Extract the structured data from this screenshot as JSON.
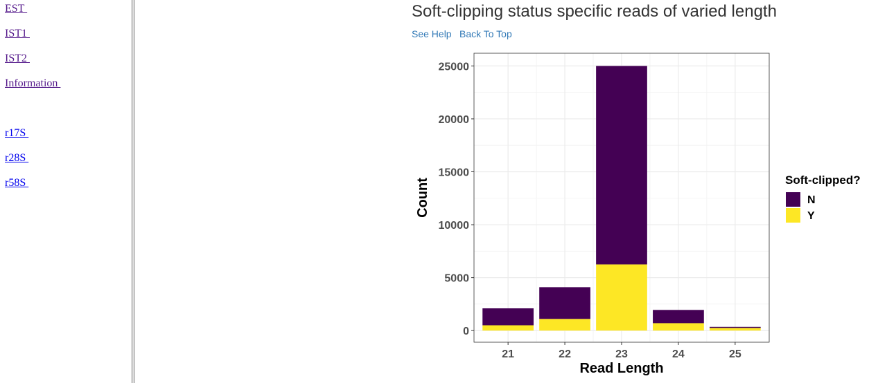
{
  "sidebar": {
    "links": [
      {
        "label": "EST ",
        "state": "visited"
      },
      {
        "label": "IST1 ",
        "state": "visited"
      },
      {
        "label": "IST2 ",
        "state": "visited"
      },
      {
        "label": "Information ",
        "state": "visited"
      },
      {
        "label": "r17S ",
        "state": "unvisited"
      },
      {
        "label": "r28S ",
        "state": "unvisited"
      },
      {
        "label": "r58S ",
        "state": "unvisited"
      }
    ]
  },
  "content": {
    "title": "Soft-clipping status specific reads of varied length",
    "links": {
      "help": "See Help",
      "top": "Back To Top"
    }
  },
  "chart_data": {
    "type": "bar",
    "stacked": true,
    "categories": [
      "21",
      "22",
      "23",
      "24",
      "25"
    ],
    "series": [
      {
        "name": "N",
        "color": "#440154",
        "values": [
          1600,
          3000,
          18750,
          1250,
          100
        ]
      },
      {
        "name": "Y",
        "color": "#fde725",
        "values": [
          500,
          1100,
          6250,
          700,
          250
        ]
      }
    ],
    "xlabel": "Read Length",
    "ylabel": "Count",
    "ylim": [
      -1100,
      26200
    ],
    "yticks": [
      0,
      5000,
      10000,
      15000,
      20000,
      25000
    ],
    "legend": {
      "title": "Soft-clipped?",
      "placement": "right"
    },
    "grid": true
  }
}
